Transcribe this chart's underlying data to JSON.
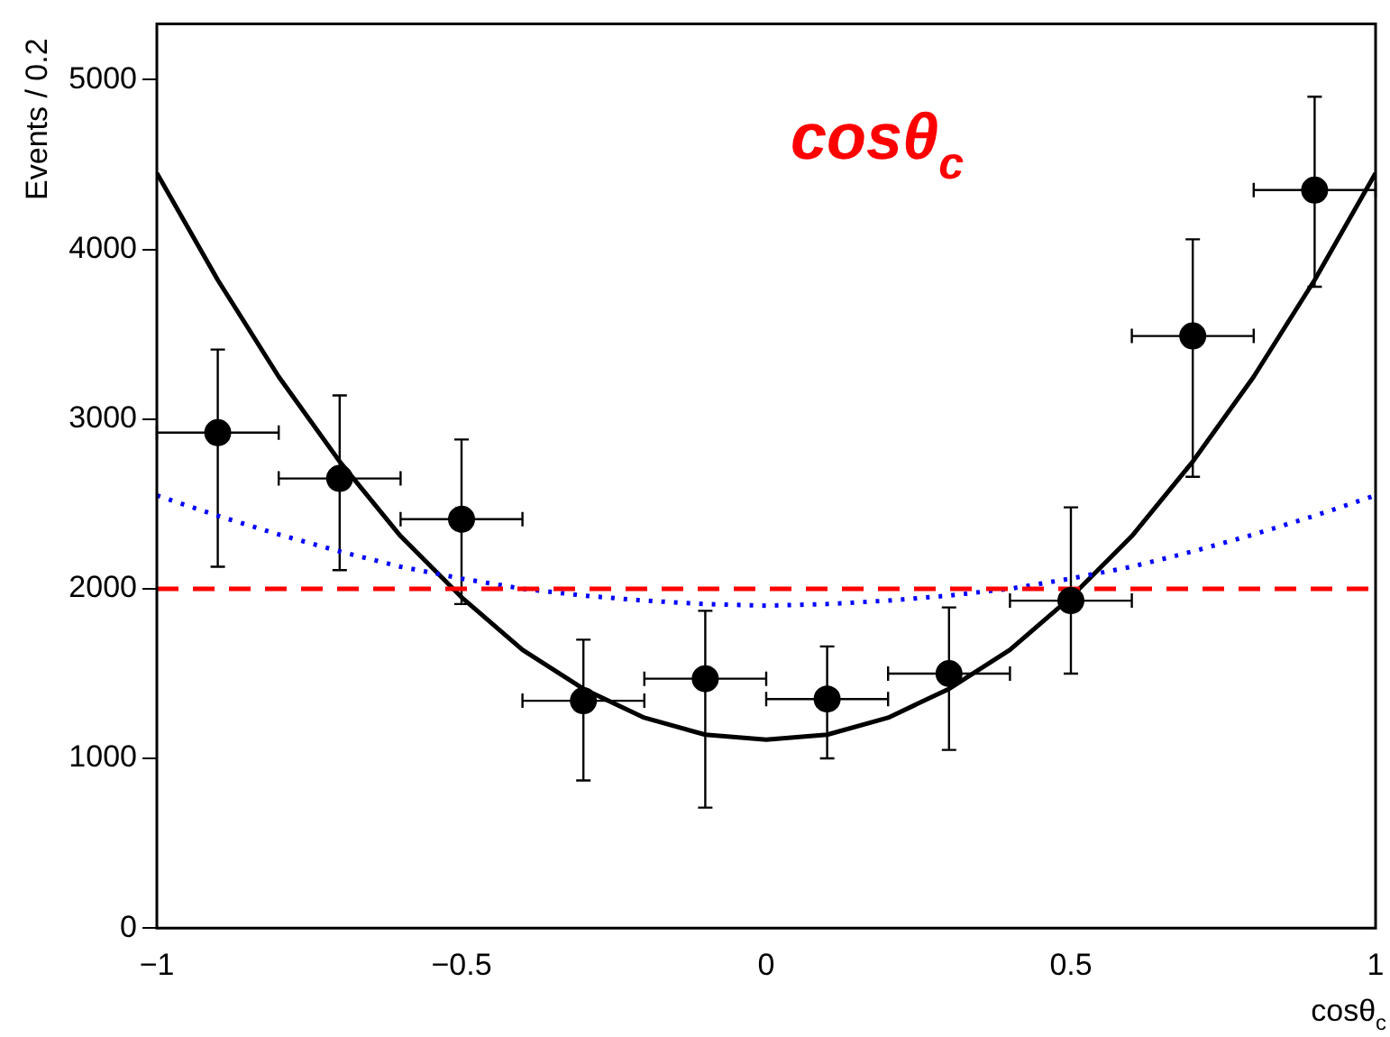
{
  "chart_data": {
    "type": "scatter",
    "xlabel": "cosθ$_{c}$",
    "ylabel": "Events / 0.2",
    "xlim": [
      -1,
      1
    ],
    "ylim": [
      0,
      5330
    ],
    "xticks": [
      {
        "value": -1,
        "label": "−1"
      },
      {
        "value": -0.5,
        "label": "−0.5"
      },
      0,
      0.5,
      1
    ],
    "yticks": [
      0,
      1000,
      2000,
      3000,
      4000,
      5000
    ],
    "grid": false,
    "legend": false,
    "annotations": [
      "cosθ$_{c}$"
    ],
    "series": [
      {
        "type": "line",
        "color": "#ff0000",
        "line_style": "dashed",
        "marker": "none",
        "x": [
          -1,
          1
        ],
        "values": [
          2000,
          2000
        ]
      },
      {
        "type": "line",
        "color": "#0000ff",
        "line_style": "dotted",
        "marker": "none",
        "x": [
          -1,
          -0.9,
          -0.8,
          -0.7,
          -0.6,
          -0.5,
          -0.4,
          -0.3,
          -0.2,
          -0.1,
          0,
          0.1,
          0.2,
          0.3,
          0.4,
          0.5,
          0.6,
          0.7,
          0.8,
          0.9,
          1
        ],
        "values": [
          2550,
          2430,
          2320,
          2220,
          2130,
          2060,
          2000,
          1960,
          1930,
          1910,
          1900,
          1910,
          1930,
          1960,
          2000,
          2060,
          2130,
          2220,
          2320,
          2430,
          2550
        ]
      },
      {
        "type": "line",
        "color": "#000000",
        "line_style": "solid",
        "marker": "none",
        "x": [
          -1,
          -0.9,
          -0.8,
          -0.7,
          -0.6,
          -0.5,
          -0.4,
          -0.3,
          -0.2,
          -0.1,
          0,
          0.1,
          0.2,
          0.3,
          0.4,
          0.5,
          0.6,
          0.7,
          0.8,
          0.9,
          1
        ],
        "values": [
          4450,
          3820,
          3250,
          2750,
          2310,
          1950,
          1640,
          1410,
          1240,
          1140,
          1110,
          1140,
          1240,
          1410,
          1640,
          1950,
          2310,
          2750,
          3250,
          3820,
          4450
        ]
      },
      {
        "type": "scatter",
        "color": "#000000",
        "marker": "circle",
        "x": [
          -0.9,
          -0.7,
          -0.5,
          -0.3,
          -0.1,
          0.1,
          0.3,
          0.5,
          0.7,
          0.9
        ],
        "values": [
          2920,
          2650,
          2410,
          1340,
          1470,
          1350,
          1500,
          1930,
          3490,
          4350
        ],
        "errors": [
          [
            2130,
            3410
          ],
          [
            2110,
            3140
          ],
          [
            1910,
            2880
          ],
          [
            870,
            1700
          ],
          [
            710,
            1870
          ],
          [
            1000,
            1660
          ],
          [
            1050,
            1890
          ],
          [
            1500,
            2480
          ],
          [
            2660,
            4060
          ],
          [
            3780,
            4900
          ]
        ],
        "xerrors": [
          0.1,
          0.1,
          0.1,
          0.1,
          0.1,
          0.1,
          0.1,
          0.1,
          0.1,
          0.1
        ]
      }
    ]
  }
}
